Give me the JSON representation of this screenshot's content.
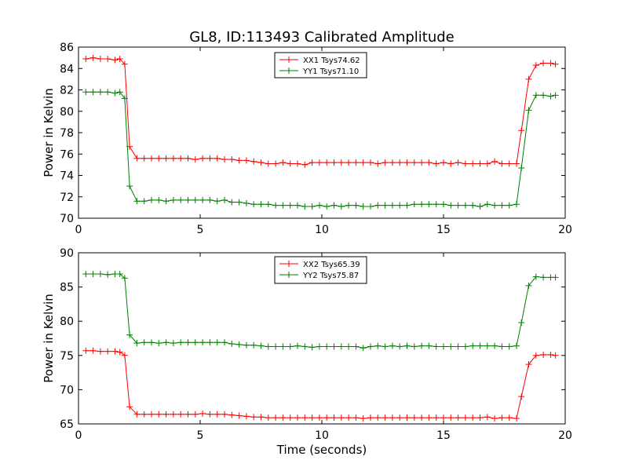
{
  "chart_data": [
    {
      "type": "line",
      "title": "GL8, ID:113493 Calibrated Amplitude",
      "xlabel": "",
      "ylabel": "Power in Kelvin",
      "xlim": [
        0,
        20
      ],
      "ylim": [
        70,
        86
      ],
      "xticks": [
        "0",
        "5",
        "10",
        "15",
        "20"
      ],
      "yticks": [
        "70",
        "72",
        "74",
        "76",
        "78",
        "80",
        "82",
        "84",
        "86"
      ],
      "legend_position": "upper-center",
      "x": [
        0.3,
        0.6,
        0.9,
        1.2,
        1.5,
        1.7,
        1.9,
        2.1,
        2.4,
        2.7,
        3.0,
        3.3,
        3.6,
        3.9,
        4.2,
        4.5,
        4.8,
        5.1,
        5.4,
        5.7,
        6.0,
        6.3,
        6.6,
        6.9,
        7.2,
        7.5,
        7.8,
        8.1,
        8.4,
        8.7,
        9.0,
        9.3,
        9.6,
        9.9,
        10.2,
        10.5,
        10.8,
        11.1,
        11.4,
        11.7,
        12.0,
        12.3,
        12.6,
        12.9,
        13.2,
        13.5,
        13.8,
        14.1,
        14.4,
        14.7,
        15.0,
        15.3,
        15.6,
        15.9,
        16.2,
        16.5,
        16.8,
        17.1,
        17.4,
        17.7,
        18.0,
        18.2,
        18.5,
        18.8,
        19.1,
        19.4,
        19.6
      ],
      "series": [
        {
          "name": "XX1 Tsys74.62",
          "color": "#ff0000",
          "values": [
            84.9,
            85.0,
            84.9,
            84.9,
            84.8,
            84.9,
            84.4,
            76.7,
            75.6,
            75.6,
            75.6,
            75.6,
            75.6,
            75.6,
            75.6,
            75.6,
            75.5,
            75.6,
            75.6,
            75.6,
            75.5,
            75.5,
            75.4,
            75.4,
            75.3,
            75.2,
            75.1,
            75.1,
            75.2,
            75.1,
            75.1,
            75.0,
            75.2,
            75.2,
            75.2,
            75.2,
            75.2,
            75.2,
            75.2,
            75.2,
            75.2,
            75.1,
            75.2,
            75.2,
            75.2,
            75.2,
            75.2,
            75.2,
            75.2,
            75.1,
            75.2,
            75.1,
            75.2,
            75.1,
            75.1,
            75.1,
            75.1,
            75.3,
            75.1,
            75.1,
            75.1,
            78.2,
            83.0,
            84.3,
            84.5,
            84.5,
            84.4
          ]
        },
        {
          "name": "YY1 Tsys71.10",
          "color": "#007f00",
          "values": [
            81.8,
            81.8,
            81.8,
            81.8,
            81.7,
            81.8,
            81.2,
            73.0,
            71.6,
            71.6,
            71.7,
            71.7,
            71.6,
            71.7,
            71.7,
            71.7,
            71.7,
            71.7,
            71.7,
            71.6,
            71.7,
            71.5,
            71.5,
            71.4,
            71.3,
            71.3,
            71.3,
            71.2,
            71.2,
            71.2,
            71.2,
            71.1,
            71.1,
            71.2,
            71.1,
            71.2,
            71.1,
            71.2,
            71.2,
            71.1,
            71.1,
            71.2,
            71.2,
            71.2,
            71.2,
            71.2,
            71.3,
            71.3,
            71.3,
            71.3,
            71.3,
            71.2,
            71.2,
            71.2,
            71.2,
            71.1,
            71.3,
            71.2,
            71.2,
            71.2,
            71.3,
            74.7,
            80.1,
            81.5,
            81.5,
            81.4,
            81.5
          ]
        }
      ]
    },
    {
      "type": "line",
      "title": "",
      "xlabel": "Time (seconds)",
      "ylabel": "Power in Kelvin",
      "xlim": [
        0,
        20
      ],
      "ylim": [
        65,
        90
      ],
      "xticks": [
        "0",
        "5",
        "10",
        "15",
        "20"
      ],
      "yticks": [
        "65",
        "70",
        "75",
        "80",
        "85",
        "90"
      ],
      "legend_position": "upper-center",
      "x": [
        0.3,
        0.6,
        0.9,
        1.2,
        1.5,
        1.7,
        1.9,
        2.1,
        2.4,
        2.7,
        3.0,
        3.3,
        3.6,
        3.9,
        4.2,
        4.5,
        4.8,
        5.1,
        5.4,
        5.7,
        6.0,
        6.3,
        6.6,
        6.9,
        7.2,
        7.5,
        7.8,
        8.1,
        8.4,
        8.7,
        9.0,
        9.3,
        9.6,
        9.9,
        10.2,
        10.5,
        10.8,
        11.1,
        11.4,
        11.7,
        12.0,
        12.3,
        12.6,
        12.9,
        13.2,
        13.5,
        13.8,
        14.1,
        14.4,
        14.7,
        15.0,
        15.3,
        15.6,
        15.9,
        16.2,
        16.5,
        16.8,
        17.1,
        17.4,
        17.7,
        18.0,
        18.2,
        18.5,
        18.8,
        19.1,
        19.4,
        19.6
      ],
      "series": [
        {
          "name": "XX2 Tsys65.39",
          "color": "#ff0000",
          "values": [
            75.7,
            75.7,
            75.6,
            75.6,
            75.6,
            75.5,
            75.0,
            67.5,
            66.4,
            66.4,
            66.4,
            66.4,
            66.4,
            66.4,
            66.4,
            66.4,
            66.4,
            66.5,
            66.4,
            66.4,
            66.4,
            66.3,
            66.2,
            66.1,
            66.0,
            66.0,
            65.9,
            65.9,
            65.9,
            65.9,
            65.9,
            65.9,
            65.9,
            65.9,
            65.9,
            65.9,
            65.9,
            65.9,
            65.9,
            65.8,
            65.9,
            65.9,
            65.9,
            65.9,
            65.9,
            65.9,
            65.9,
            65.9,
            65.9,
            65.9,
            65.9,
            65.9,
            65.9,
            65.9,
            65.9,
            65.9,
            66.0,
            65.8,
            65.9,
            65.9,
            65.8,
            69.0,
            73.7,
            75.0,
            75.1,
            75.1,
            75.0
          ]
        },
        {
          "name": "YY2 Tsys75.87",
          "color": "#007f00",
          "values": [
            86.9,
            86.9,
            86.9,
            86.8,
            86.9,
            86.9,
            86.3,
            78.0,
            76.8,
            76.9,
            76.9,
            76.8,
            76.9,
            76.8,
            76.9,
            76.9,
            76.9,
            76.9,
            76.9,
            76.9,
            76.9,
            76.7,
            76.6,
            76.5,
            76.5,
            76.4,
            76.3,
            76.3,
            76.3,
            76.3,
            76.4,
            76.3,
            76.2,
            76.3,
            76.3,
            76.3,
            76.3,
            76.3,
            76.3,
            76.1,
            76.3,
            76.4,
            76.3,
            76.4,
            76.3,
            76.4,
            76.3,
            76.4,
            76.4,
            76.3,
            76.3,
            76.3,
            76.3,
            76.3,
            76.4,
            76.4,
            76.4,
            76.4,
            76.3,
            76.3,
            76.4,
            79.8,
            85.2,
            86.5,
            86.4,
            86.4,
            86.4
          ]
        }
      ]
    }
  ]
}
